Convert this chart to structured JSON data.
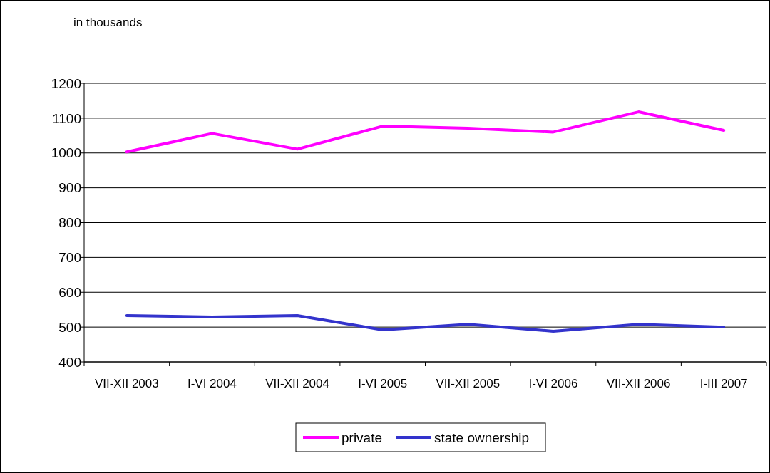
{
  "chart_data": {
    "type": "line",
    "ylabel": "in thousands",
    "categories": [
      "VII-XII 2003",
      "I-VI 2004",
      "VII-XII 2004",
      "I-VI 2005",
      "VII-XII 2005",
      "I-VI 2006",
      "VII-XII 2006",
      "I-III 2007"
    ],
    "series": [
      {
        "name": "private",
        "color": "#ff00ff",
        "values": [
          1003,
          1056,
          1011,
          1077,
          1071,
          1060,
          1118,
          1065
        ]
      },
      {
        "name": "state ownership",
        "color": "#3333cc",
        "values": [
          533,
          529,
          533,
          492,
          508,
          488,
          508,
          500
        ]
      }
    ],
    "ylim": [
      400,
      1200
    ],
    "yticks": [
      400,
      500,
      600,
      700,
      800,
      900,
      1000,
      1100,
      1200
    ],
    "grid": "y",
    "legend": "bottom",
    "marker": "none",
    "line_style": "solid"
  }
}
